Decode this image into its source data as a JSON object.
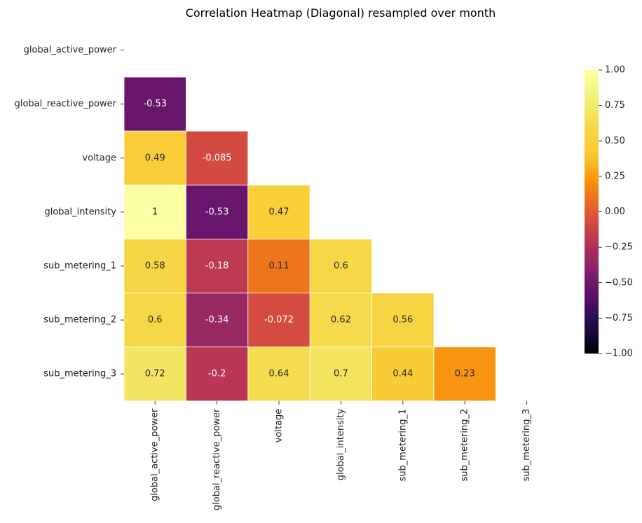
{
  "chart_data": {
    "type": "heatmap",
    "title": "Correlation Heatmap (Diagonal) resampled over month",
    "variables": [
      "global_active_power",
      "global_reactive_power",
      "voltage",
      "global_intensity",
      "sub_metering_1",
      "sub_metering_2",
      "sub_metering_3"
    ],
    "mask": "upper-triangle-including-diagonal",
    "cells": [
      {
        "row": 1,
        "col": 0,
        "value": -0.53,
        "label": "-0.53"
      },
      {
        "row": 2,
        "col": 0,
        "value": 0.49,
        "label": "0.49"
      },
      {
        "row": 2,
        "col": 1,
        "value": -0.085,
        "label": "-0.085"
      },
      {
        "row": 3,
        "col": 0,
        "value": 1.0,
        "label": "1"
      },
      {
        "row": 3,
        "col": 1,
        "value": -0.53,
        "label": "-0.53"
      },
      {
        "row": 3,
        "col": 2,
        "value": 0.47,
        "label": "0.47"
      },
      {
        "row": 4,
        "col": 0,
        "value": 0.58,
        "label": "0.58"
      },
      {
        "row": 4,
        "col": 1,
        "value": -0.18,
        "label": "-0.18"
      },
      {
        "row": 4,
        "col": 2,
        "value": 0.11,
        "label": "0.11"
      },
      {
        "row": 4,
        "col": 3,
        "value": 0.6,
        "label": "0.6"
      },
      {
        "row": 5,
        "col": 0,
        "value": 0.6,
        "label": "0.6"
      },
      {
        "row": 5,
        "col": 1,
        "value": -0.34,
        "label": "-0.34"
      },
      {
        "row": 5,
        "col": 2,
        "value": -0.072,
        "label": "-0.072"
      },
      {
        "row": 5,
        "col": 3,
        "value": 0.62,
        "label": "0.62"
      },
      {
        "row": 5,
        "col": 4,
        "value": 0.56,
        "label": "0.56"
      },
      {
        "row": 6,
        "col": 0,
        "value": 0.72,
        "label": "0.72"
      },
      {
        "row": 6,
        "col": 1,
        "value": -0.2,
        "label": "-0.2"
      },
      {
        "row": 6,
        "col": 2,
        "value": 0.64,
        "label": "0.64"
      },
      {
        "row": 6,
        "col": 3,
        "value": 0.7,
        "label": "0.7"
      },
      {
        "row": 6,
        "col": 4,
        "value": 0.44,
        "label": "0.44"
      },
      {
        "row": 6,
        "col": 5,
        "value": 0.23,
        "label": "0.23"
      }
    ],
    "colorscale": "inferno",
    "vmin": -1.0,
    "vmax": 1.0,
    "colorbar_ticks": [
      "1.00",
      "0.75",
      "0.50",
      "0.25",
      "0.00",
      "−0.25",
      "−0.50",
      "−0.75",
      "−1.00"
    ],
    "colorbar_tick_values": [
      1.0,
      0.75,
      0.5,
      0.25,
      0.0,
      -0.25,
      -0.5,
      -0.75,
      -1.0
    ],
    "grid_line_color": "#ffffff"
  }
}
